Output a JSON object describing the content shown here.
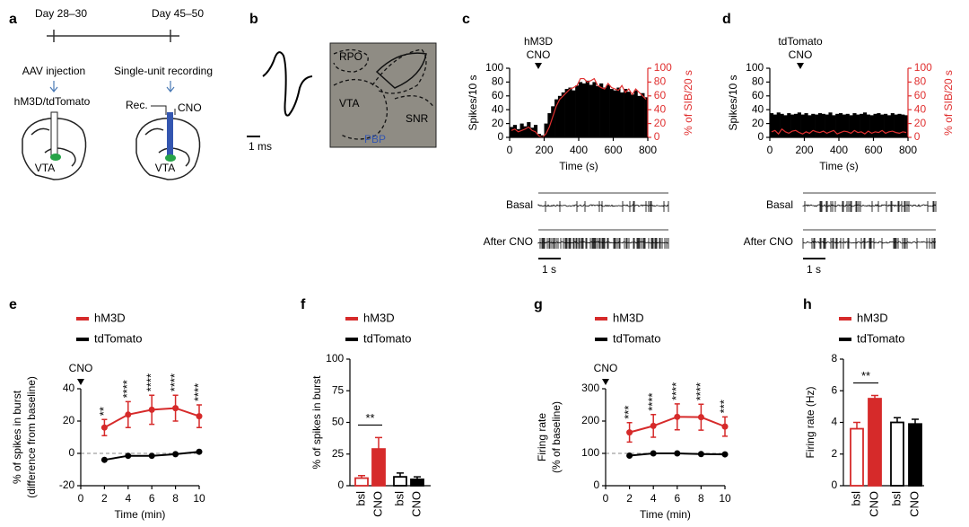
{
  "panels": {
    "a": {
      "label": "a",
      "day_start": "Day 28–30",
      "day_end": "Day 45–50",
      "step_1": "AAV injection",
      "step_2": "Single-unit recording",
      "virus": "hM3D/tdTomato",
      "rec": "Rec.",
      "cno": "CNO",
      "region_1": "VTA",
      "region_2": "VTA"
    },
    "b": {
      "label": "b",
      "scale": "1 ms",
      "regions": [
        "RPO",
        "VTA",
        "SNR",
        "PBP"
      ]
    }
  },
  "chart_data": [
    {
      "type": "histogram",
      "panel_label": "c",
      "annotations": [
        "hM3D",
        "CNO"
      ],
      "bins": [
        0,
        20,
        40,
        60,
        80,
        100,
        120,
        140,
        160,
        180,
        200,
        220,
        240,
        260,
        280,
        300,
        320,
        340,
        360,
        380,
        400,
        420,
        440,
        460,
        480,
        500,
        520,
        540,
        560,
        580,
        600,
        620,
        640,
        660,
        680,
        700,
        720,
        740,
        760,
        780,
        800
      ],
      "values": [
        15,
        18,
        12,
        20,
        16,
        22,
        14,
        18,
        5,
        3,
        20,
        35,
        45,
        55,
        60,
        65,
        70,
        72,
        68,
        75,
        80,
        78,
        82,
        76,
        80,
        74,
        78,
        72,
        76,
        70,
        68,
        72,
        65,
        70,
        66,
        62,
        68,
        60,
        64,
        58
      ],
      "color": "#000000",
      "sib_values": [
        10,
        12,
        8,
        10,
        12,
        15,
        10,
        8,
        2,
        0,
        5,
        15,
        30,
        45,
        55,
        60,
        65,
        70,
        72,
        75,
        85,
        85,
        80,
        82,
        85,
        75,
        72,
        70,
        78,
        72,
        70,
        68,
        75,
        65,
        70,
        62,
        70,
        65,
        60,
        55
      ],
      "sib_color": "#e03030",
      "xlabel": "Time (s)",
      "ylabel": "Spikes/10 s",
      "y2label": "% of SIB/20 s",
      "xlim": [
        0,
        800
      ],
      "xticks": [
        0,
        200,
        400,
        600,
        800
      ],
      "ylim": [
        0,
        100
      ],
      "yticks": [
        0,
        20,
        40,
        60,
        80,
        100
      ],
      "y2lim": [
        0,
        100
      ],
      "y2ticks": [
        0,
        20,
        40,
        60,
        80,
        100
      ],
      "traces": [
        "Basal",
        "After CNO"
      ],
      "scale_bar": "1 s"
    },
    {
      "type": "histogram",
      "panel_label": "d",
      "annotations": [
        "tdTomato",
        "CNO"
      ],
      "bins": [
        0,
        20,
        40,
        60,
        80,
        100,
        120,
        140,
        160,
        180,
        200,
        220,
        240,
        260,
        280,
        300,
        320,
        340,
        360,
        380,
        400,
        420,
        440,
        460,
        480,
        500,
        520,
        540,
        560,
        580,
        600,
        620,
        640,
        660,
        680,
        700,
        720,
        740,
        760,
        780,
        800
      ],
      "values": [
        35,
        33,
        36,
        34,
        32,
        35,
        33,
        34,
        36,
        33,
        35,
        32,
        34,
        33,
        35,
        34,
        33,
        36,
        32,
        34,
        35,
        33,
        34,
        32,
        35,
        33,
        34,
        36,
        33,
        32,
        34,
        35,
        33,
        34,
        32,
        35,
        33,
        34,
        33,
        32
      ],
      "color": "#000000",
      "sib_values": [
        8,
        10,
        5,
        12,
        8,
        6,
        9,
        10,
        7,
        5,
        8,
        6,
        10,
        8,
        7,
        9,
        6,
        8,
        10,
        5,
        7,
        9,
        8,
        6,
        10,
        7,
        8,
        5,
        9,
        6,
        8,
        7,
        10,
        6,
        8,
        9,
        7,
        6,
        8,
        7
      ],
      "sib_color": "#e03030",
      "xlabel": "Time (s)",
      "ylabel": "Spikes/10 s",
      "y2label": "% of SIB/20 s",
      "xlim": [
        0,
        800
      ],
      "xticks": [
        0,
        200,
        400,
        600,
        800
      ],
      "ylim": [
        0,
        100
      ],
      "yticks": [
        0,
        20,
        40,
        60,
        80,
        100
      ],
      "y2lim": [
        0,
        100
      ],
      "y2ticks": [
        0,
        20,
        40,
        60,
        80,
        100
      ],
      "traces": [
        "Basal",
        "After CNO"
      ],
      "scale_bar": "1 s"
    },
    {
      "type": "line",
      "panel_label": "e",
      "annotation": "CNO",
      "x": [
        2,
        4,
        6,
        8,
        10
      ],
      "series": [
        {
          "name": "hM3D",
          "color": "#d62a2a",
          "values": [
            16,
            24,
            27,
            28,
            23
          ],
          "errors": [
            5,
            8,
            9,
            8,
            7
          ]
        },
        {
          "name": "tdTomato",
          "color": "#000000",
          "values": [
            -4,
            -1.5,
            -1.5,
            -0.5,
            1
          ]
        }
      ],
      "significance": [
        "**",
        "****",
        "****",
        "****",
        "****"
      ],
      "baseline": 0,
      "xlim": [
        0,
        10
      ],
      "xticks": [
        0,
        2,
        4,
        6,
        8,
        10
      ],
      "ylim": [
        -20,
        40
      ],
      "yticks": [
        -20,
        0,
        20,
        40
      ],
      "xlabel": "Time (min)",
      "ylabel": [
        "% of spikes in burst",
        "(difference from baseline)"
      ]
    },
    {
      "type": "bar",
      "panel_label": "f",
      "categories": [
        "bsl",
        "CNO",
        "bsl",
        "CNO"
      ],
      "values": [
        6,
        29,
        7,
        5
      ],
      "errors": [
        2,
        9,
        3,
        2
      ],
      "colors": [
        "#d62a2a",
        "#d62a2a",
        "#000000",
        "#000000"
      ],
      "filled": [
        false,
        true,
        false,
        true
      ],
      "legend": [
        {
          "name": "hM3D",
          "color": "#d62a2a"
        },
        {
          "name": "tdTomato",
          "color": "#000000"
        }
      ],
      "significance": "**",
      "ylim": [
        0,
        100
      ],
      "yticks": [
        0,
        25,
        50,
        75,
        100
      ],
      "ylabel": "% of spikes in burst"
    },
    {
      "type": "line",
      "panel_label": "g",
      "annotation": "CNO",
      "x": [
        2,
        4,
        6,
        8,
        10
      ],
      "series": [
        {
          "name": "hM3D",
          "color": "#d62a2a",
          "values": [
            165,
            185,
            213,
            212,
            183
          ],
          "errors": [
            30,
            35,
            40,
            40,
            30
          ]
        },
        {
          "name": "tdTomato",
          "color": "#000000",
          "values": [
            93,
            100,
            100,
            98,
            97
          ]
        }
      ],
      "significance": [
        "***",
        "****",
        "****",
        "****",
        "***"
      ],
      "baseline": 100,
      "xlim": [
        0,
        10
      ],
      "xticks": [
        0,
        2,
        4,
        6,
        8,
        10
      ],
      "ylim": [
        0,
        300
      ],
      "yticks": [
        0,
        100,
        200,
        300
      ],
      "xlabel": "Time (min)",
      "ylabel": [
        "Firing rate",
        "(% of baseline)"
      ]
    },
    {
      "type": "bar",
      "panel_label": "h",
      "categories": [
        "bsl",
        "CNO",
        "bsl",
        "CNO"
      ],
      "values": [
        3.6,
        5.5,
        4.0,
        3.9
      ],
      "errors": [
        0.4,
        0.2,
        0.3,
        0.3
      ],
      "colors": [
        "#d62a2a",
        "#d62a2a",
        "#000000",
        "#000000"
      ],
      "filled": [
        false,
        true,
        false,
        true
      ],
      "legend": [
        {
          "name": "hM3D",
          "color": "#d62a2a"
        },
        {
          "name": "tdTomato",
          "color": "#000000"
        }
      ],
      "significance": "**",
      "ylim": [
        0,
        8
      ],
      "yticks": [
        0,
        2,
        4,
        6,
        8
      ],
      "ylabel": "Firing rate (Hz)"
    }
  ]
}
